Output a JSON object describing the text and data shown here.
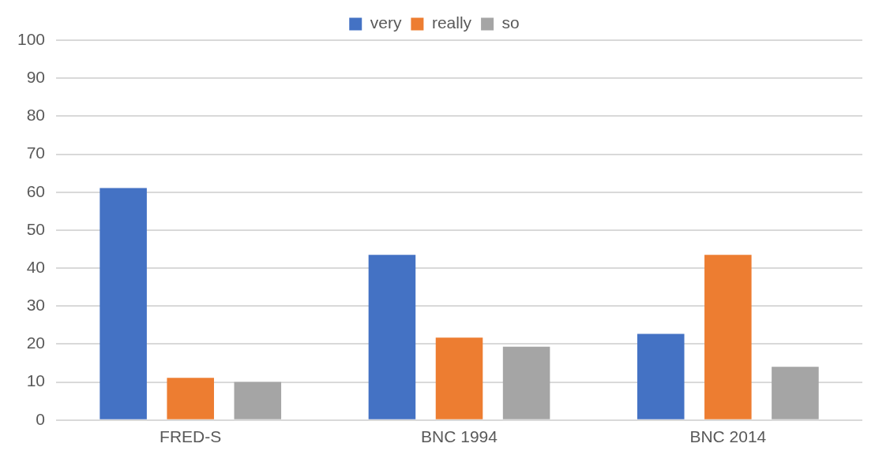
{
  "chart_data": {
    "type": "bar",
    "categories": [
      "FRED-S",
      "BNC 1994",
      "BNC 2014"
    ],
    "series": [
      {
        "name": "very",
        "color": "#4472c4",
        "values": [
          61.1,
          43.5,
          22.7
        ]
      },
      {
        "name": "really",
        "color": "#ed7d31",
        "values": [
          11.1,
          21.7,
          43.5
        ]
      },
      {
        "name": "so",
        "color": "#a5a5a5",
        "values": [
          10.0,
          19.3,
          14.0
        ]
      }
    ],
    "ylim": [
      0,
      100
    ],
    "yticks": [
      0,
      10,
      20,
      30,
      40,
      50,
      60,
      70,
      80,
      90,
      100
    ],
    "grid": "y",
    "legend": "top"
  }
}
